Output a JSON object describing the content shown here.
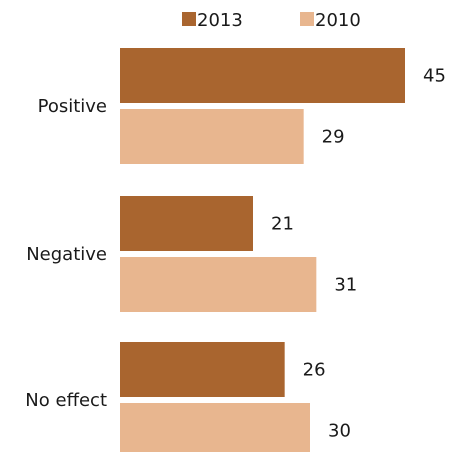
{
  "chart_data": {
    "type": "bar",
    "orientation": "horizontal",
    "categories": [
      "Positive",
      "Negative",
      "No effect"
    ],
    "series": [
      {
        "name": "2013",
        "values": [
          45,
          21,
          26
        ],
        "color": "#a9652f"
      },
      {
        "name": "2010",
        "values": [
          29,
          31,
          30
        ],
        "color": "#e8b68f"
      }
    ],
    "xlim": [
      0,
      45
    ],
    "grid": false,
    "legend_position": "top",
    "data_labels": true
  }
}
